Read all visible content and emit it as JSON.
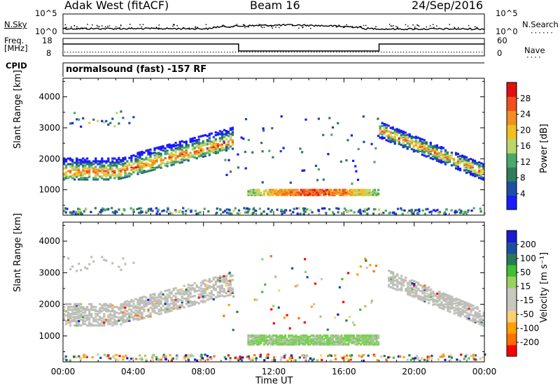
{
  "header": {
    "radar": "Adak West (fitACF)",
    "beam": "Beam 16",
    "date": "24/Sep/2016"
  },
  "top_panels": {
    "nsky_label": "N.Sky",
    "nsky_ticks": [
      "10^5",
      "10^0"
    ],
    "nsearch_label": "N.Search",
    "nsearch_ticks": [
      "10^5",
      "10^0"
    ],
    "freq_label_1": "Freq.",
    "freq_label_2": "[MHz]",
    "freq_ticks": [
      "18",
      "8"
    ],
    "nave_label": "Nave",
    "nave_ticks": [
      "60",
      "0"
    ],
    "cpid_label": "CPID",
    "cpid_text": "normalsound (fast) -157 RF"
  },
  "colors": {
    "power_scale": [
      "#1a1aff",
      "#1d4fa6",
      "#2e7d5b",
      "#4aa86a",
      "#bcd66a",
      "#f0c020",
      "#f09020",
      "#f05020",
      "#e01010"
    ],
    "velocity_scale": [
      "#ff0000",
      "#ff7000",
      "#ffa000",
      "#ffd070",
      "#c8c8c0",
      "#c8c8c0",
      "#9ad060",
      "#40c030",
      "#2a7a5a",
      "#1c4fa0",
      "#1a1ad0"
    ],
    "ground_scatter": "#bfbfb8"
  },
  "chart_data": [
    {
      "type": "heatmap",
      "title": "",
      "xlabel": "",
      "ylabel": "Slant Range [km]",
      "xlim": [
        0,
        24
      ],
      "ylim": [
        180,
        4600
      ],
      "y_ticks": [
        "1000",
        "2000",
        "3000",
        "4000"
      ],
      "x_tick_values": [
        0,
        4,
        8,
        12,
        16,
        20,
        24
      ],
      "colorbar": {
        "label": "Power [dB]",
        "ticks": [
          "28",
          "24",
          "20",
          "16",
          "12",
          "8",
          "4"
        ],
        "range": [
          0,
          32
        ]
      },
      "scatter_regions": [
        {
          "t0": 0.0,
          "t1": 9.6,
          "r_start": 1400,
          "r_end": 2800,
          "peak_power_db": 30
        },
        {
          "t0": 10.5,
          "t1": 18.0,
          "r_start": 800,
          "r_end": 1000,
          "peak_power_db": 30
        },
        {
          "t0": 18.0,
          "t1": 24.0,
          "r_start": 1200,
          "r_end": 3100,
          "peak_power_db": 30
        }
      ]
    },
    {
      "type": "heatmap",
      "title": "",
      "xlabel": "Time UT",
      "ylabel": "Slant Range [km]",
      "xlim": [
        0,
        24
      ],
      "ylim": [
        180,
        4600
      ],
      "y_ticks": [
        "1000",
        "2000",
        "3000",
        "4000"
      ],
      "x_ticks": [
        "00:00",
        "04:00",
        "08:00",
        "12:00",
        "16:00",
        "20:00",
        "00:00"
      ],
      "x_tick_values": [
        0,
        4,
        8,
        12,
        16,
        20,
        24
      ],
      "colorbar": {
        "label": "Velocity [m s⁻¹]",
        "ticks": [
          "200",
          "100",
          "50",
          "15",
          "-15",
          "-50",
          "-100",
          "-200"
        ],
        "range": [
          -250,
          250
        ]
      },
      "scatter_regions": [
        {
          "t0": 0.0,
          "t1": 9.6,
          "r_start": 1400,
          "r_end": 2800,
          "kind": "ground_scatter"
        },
        {
          "t0": 10.5,
          "t1": 18.0,
          "r_start": 700,
          "r_end": 1000,
          "velocity_ms": 30
        },
        {
          "t0": 18.5,
          "t1": 24.0,
          "r_start": 1400,
          "r_end": 3100,
          "kind": "ground_scatter"
        }
      ]
    }
  ]
}
